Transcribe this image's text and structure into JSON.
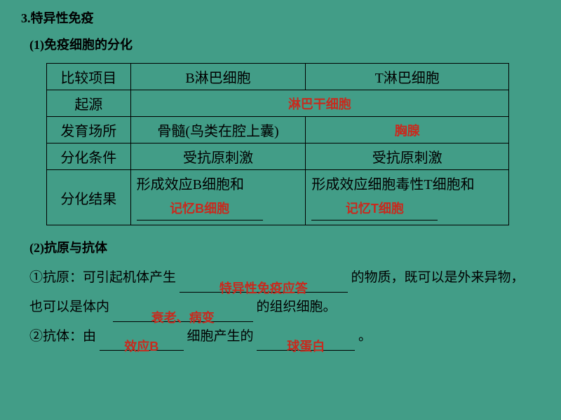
{
  "heading": "3.特异性免疫",
  "sub1": "(1)免疫细胞的分化",
  "table": {
    "header": {
      "c1": "比较项目",
      "c2": "B淋巴细胞",
      "c3": "T淋巴细胞"
    },
    "origin": {
      "label": "起源",
      "answer": "淋巴干细胞"
    },
    "develop": {
      "label": "发育场所",
      "b": "骨髓(鸟类在腔上囊)",
      "t_answer": "胸腺"
    },
    "cond": {
      "label": "分化条件",
      "b": "受抗原刺激",
      "t": "受抗原刺激"
    },
    "result": {
      "label": "分化结果",
      "b_text": "形成效应B细胞和",
      "b_answer": "记忆B细胞",
      "t_text": "形成效应细胞毒性T细胞和",
      "t_answer": "记忆T细胞"
    }
  },
  "sub2": "(2)抗原与抗体",
  "line1_a": "①抗原：可引起机体产生",
  "line1_ans": "特异性免疫应答",
  "line1_b": "的物质，既可以是外来异物，",
  "line2_a": "也可以是体内",
  "line2_ans": "衰老、病变",
  "line2_b": "的组织细胞。",
  "line3_a": "②抗体：由",
  "line3_ans1": "效应B",
  "line3_mid": "细胞产生的",
  "line3_ans2": "球蛋白",
  "line3_end": "。",
  "colors": {
    "background": "#429d87",
    "text": "#000000",
    "answer": "#c82a1e",
    "border": "#000000"
  }
}
